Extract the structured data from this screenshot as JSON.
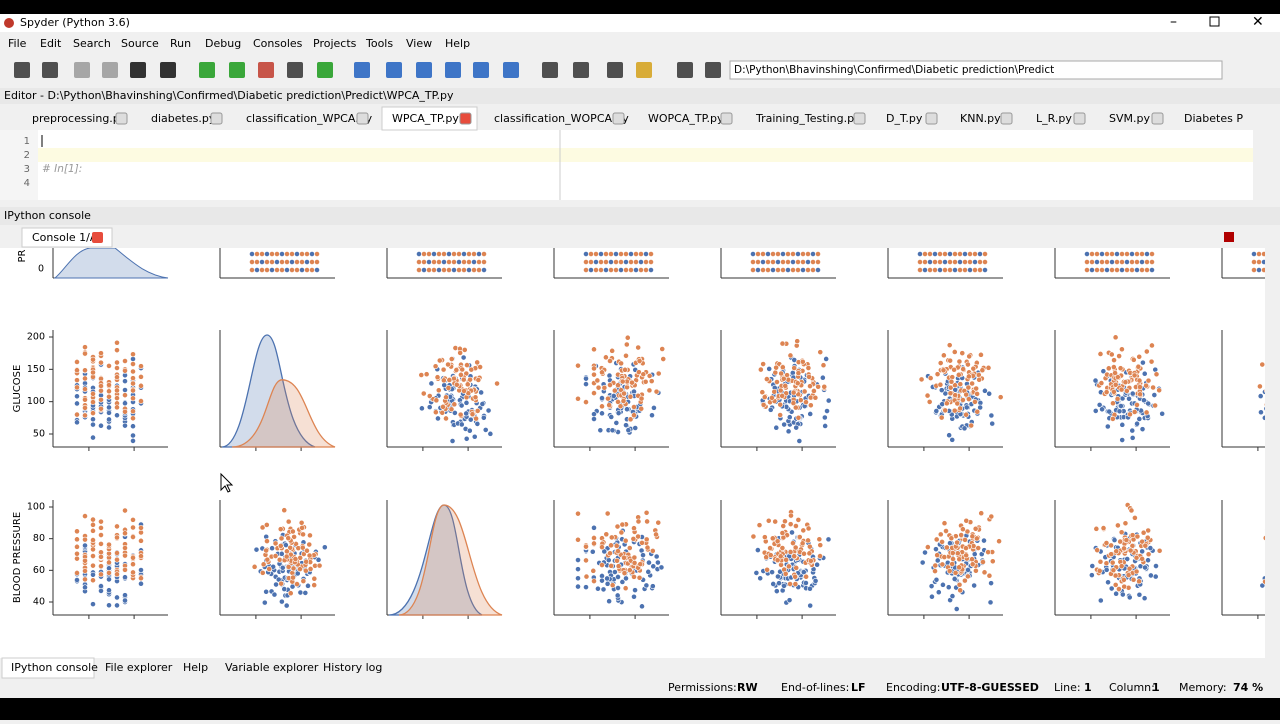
{
  "window": {
    "title": "Spyder (Python 3.6)"
  },
  "menu": [
    "File",
    "Edit",
    "Search",
    "Source",
    "Run",
    "Debug",
    "Consoles",
    "Projects",
    "Tools",
    "View",
    "Help"
  ],
  "toolbar": {
    "path": "D:\\Python\\Bhavinshing\\Confirmed\\Diabetic prediction\\Predict"
  },
  "editor": {
    "title": "Editor - D:\\Python\\Bhavinshing\\Confirmed\\Diabetic prediction\\Predict\\WPCA_TP.py",
    "tabs": [
      "preprocessing.py",
      "diabetes.py",
      "classification_WPCA.py",
      "WPCA_TP.py",
      "classification_WOPCA.py",
      "WOPCA_TP.py",
      "Training_Testing.py",
      "D_T.py",
      "KNN.py",
      "L_R.py",
      "SVM.py",
      "Diabetes P"
    ],
    "line_numbers": [
      1,
      2,
      3,
      4
    ],
    "comment": "# In[1]:"
  },
  "console": {
    "title": "IPython console",
    "tab": "Console 1/A",
    "plot": {
      "top_label": "PR",
      "top_ticks": [
        0
      ],
      "rows": [
        {
          "label": "GLUCOSE",
          "ticks": [
            200,
            150,
            100,
            50
          ]
        },
        {
          "label": "BLOOD PRESSURE",
          "ticks": [
            100,
            80,
            60,
            40
          ]
        }
      ]
    }
  },
  "bottom_tabs": [
    "IPython console",
    "File explorer",
    "Help",
    "Variable explorer",
    "History log"
  ],
  "status": [
    {
      "label": "Permissions:",
      "value": "RW"
    },
    {
      "label": "End-of-lines:",
      "value": "LF"
    },
    {
      "label": "Encoding:",
      "value": "UTF-8-GUESSED"
    },
    {
      "label": "Line:",
      "value": "1"
    },
    {
      "label": "Column:",
      "value": "1"
    },
    {
      "label": "Memory:",
      "value": "74 %"
    }
  ]
}
